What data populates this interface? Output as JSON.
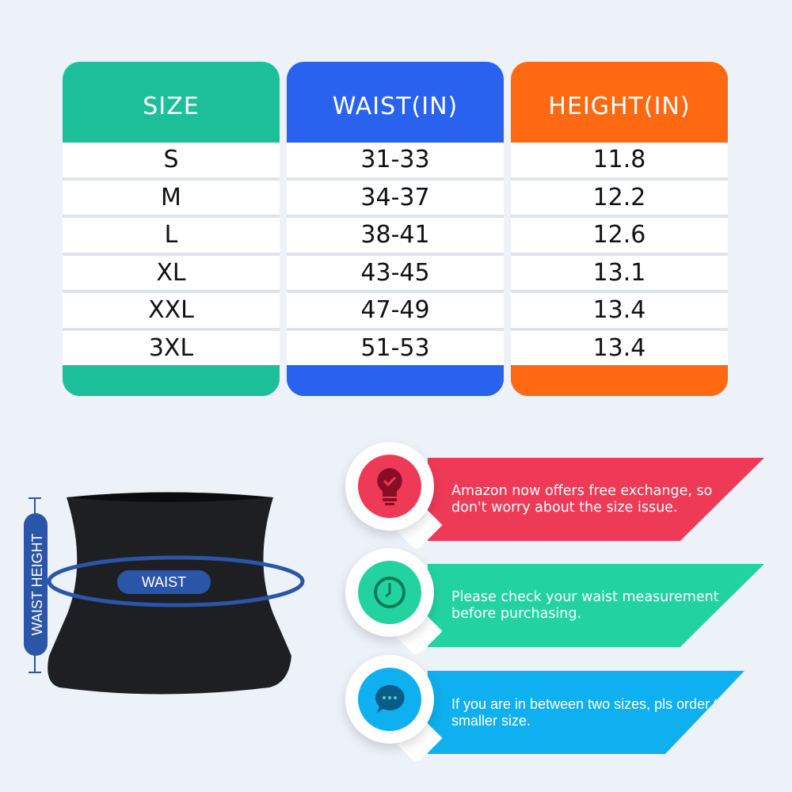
{
  "colors": {
    "size": "#1dbf9a",
    "waist": "#2a62f0",
    "height": "#ff6912",
    "tip1": "#ef3a57",
    "tip2": "#22d3a0",
    "tip3": "#0fb0ef",
    "label": "#2b55a8"
  },
  "table": {
    "headers": [
      "SIZE",
      "WAIST(IN)",
      "HEIGHT(IN)"
    ],
    "rows": [
      [
        "S",
        "31-33",
        "11.8"
      ],
      [
        "M",
        "34-37",
        "12.2"
      ],
      [
        "L",
        "38-41",
        "12.6"
      ],
      [
        "XL",
        "43-45",
        "13.1"
      ],
      [
        "XXL",
        "47-49",
        "13.4"
      ],
      [
        "3XL",
        "51-53",
        "13.4"
      ]
    ]
  },
  "diagram": {
    "waist_label": "WAIST",
    "height_label": "WAIST HEIGHT"
  },
  "tips": [
    {
      "icon": "lightbulb-check-icon",
      "text": "Amazon now offers free exchange, so don't worry about the size issue."
    },
    {
      "icon": "clock-icon",
      "text": "Please check your waist measurement before purchasing."
    },
    {
      "icon": "chat-bubble-icon",
      "text": "If you are in between two sizes, pls order the smaller size."
    }
  ]
}
